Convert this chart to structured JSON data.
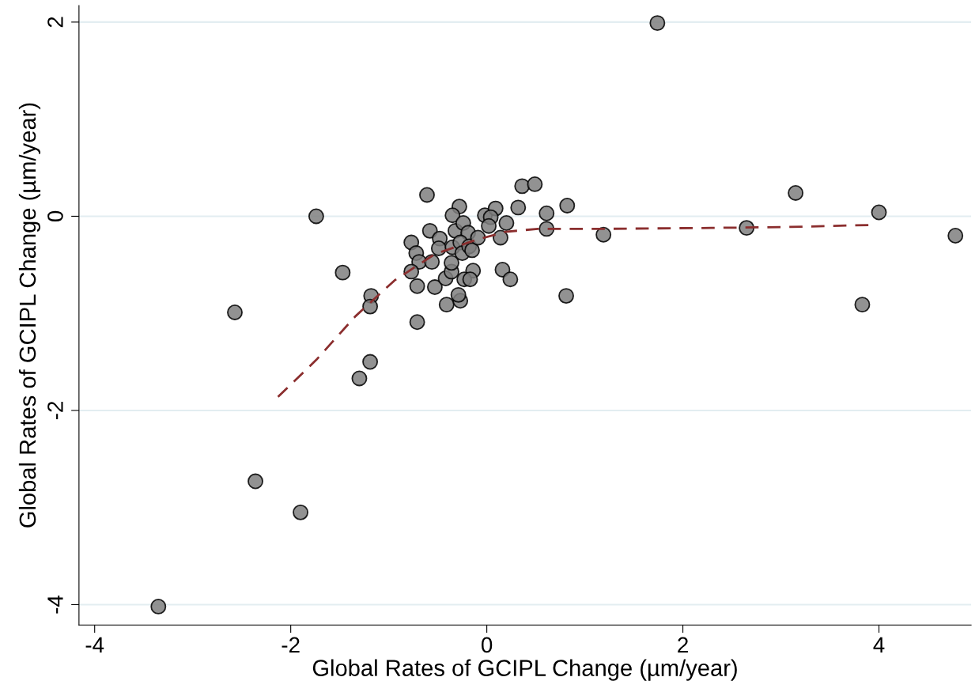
{
  "chart_data": {
    "type": "scatter",
    "xlabel": "Global Rates of GCIPL Change (µm/year)",
    "ylabel": "Global Rates of GCIPL Change (µm/year)",
    "xlim": [
      -4.16,
      4.94
    ],
    "ylim": [
      -4.21,
      2.17
    ],
    "xticks": [
      -4,
      -2,
      0,
      2,
      4
    ],
    "yticks": [
      -4,
      -2,
      0,
      2
    ],
    "grid": "y",
    "series": [
      {
        "marker": "circle",
        "color": "#7f7f7f",
        "x": [
          1.74,
          -1.74,
          -1.47,
          -2.57,
          -1.18,
          -1.19,
          -1.19,
          -1.3,
          -2.36,
          -1.9,
          -3.35,
          -0.61,
          0.36,
          0.49,
          0.32,
          0.61,
          0.61,
          0.82,
          0.81,
          1.19,
          2.65,
          3.15,
          4.0,
          3.83,
          4.78,
          -0.28,
          -0.35,
          -0.58,
          -0.48,
          -0.77,
          -0.49,
          -0.72,
          -0.69,
          -0.56,
          -0.77,
          -0.71,
          -0.53,
          -0.42,
          -0.41,
          -0.27,
          -0.29,
          -0.36,
          -0.36,
          -0.35,
          -0.32,
          -0.24,
          -0.19,
          -0.27,
          -0.25,
          -0.18,
          -0.15,
          -0.09,
          -0.14,
          -0.23,
          -0.17,
          -0.02,
          0.09,
          0.04,
          0.02,
          0.2,
          0.14,
          0.16,
          0.24,
          -0.71
        ],
        "values": [
          1.99,
          0.0,
          -0.58,
          -0.99,
          -0.82,
          -0.93,
          -1.5,
          -1.67,
          -2.73,
          -3.05,
          -4.02,
          0.22,
          0.31,
          0.33,
          0.09,
          0.03,
          -0.13,
          0.11,
          -0.82,
          -0.19,
          -0.12,
          0.24,
          0.04,
          -0.91,
          -0.2,
          0.1,
          0.01,
          -0.15,
          -0.23,
          -0.27,
          -0.33,
          -0.38,
          -0.47,
          -0.47,
          -0.57,
          -0.72,
          -0.73,
          -0.64,
          -0.91,
          -0.87,
          -0.81,
          -0.57,
          -0.48,
          -0.32,
          -0.15,
          -0.07,
          -0.17,
          -0.27,
          -0.38,
          -0.31,
          -0.35,
          -0.22,
          -0.56,
          -0.65,
          -0.65,
          0.01,
          0.08,
          -0.01,
          -0.1,
          -0.07,
          -0.22,
          -0.55,
          -0.65,
          -1.09
        ]
      },
      {
        "type": "line",
        "color": "#8b2e2e",
        "line_style": "dashed",
        "marker": "none",
        "x": [
          -2.13,
          -1.74,
          -1.34,
          -0.94,
          -0.53,
          -0.13,
          0.19,
          0.52,
          1.16,
          2.29,
          3.1,
          3.91
        ],
        "values": [
          -1.86,
          -1.48,
          -1.03,
          -0.66,
          -0.39,
          -0.25,
          -0.16,
          -0.13,
          -0.13,
          -0.12,
          -0.11,
          -0.09
        ]
      }
    ]
  }
}
